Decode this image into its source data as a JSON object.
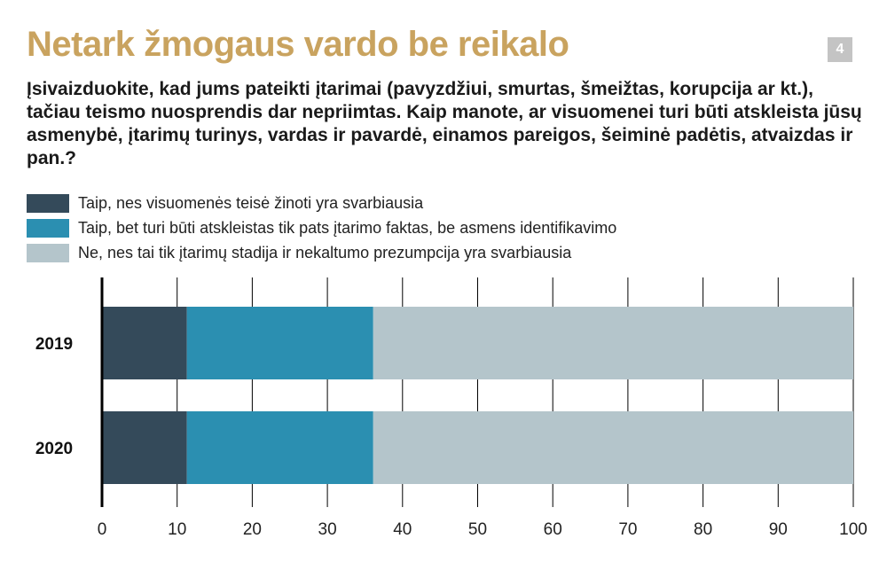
{
  "page_number": "4",
  "chart_data": {
    "type": "bar",
    "orientation": "horizontal",
    "stacked": true,
    "title": "Netark žmogaus vardo be reikalo",
    "subtitle": "Įsivaizduokite, kad jums pateikti įtarimai (pavyzdžiui, smurtas, šmeižtas, korupcija ar kt.), tačiau teismo nuosprendis dar nepriimtas. Kaip manote, ar visuomenei turi būti atskleista jūsų asmenybė, įtarimų turinys, vardas ir pavardė, einamos pareigos, šeiminė padėtis, atvaizdas ir pan.?",
    "categories": [
      "2019",
      "2020"
    ],
    "series": [
      {
        "name": "Taip, nes visuomenės teisė žinoti yra svarbiausia",
        "color": "#344a5a",
        "values": [
          11.3,
          11.3
        ]
      },
      {
        "name": "Taip, bet turi būti atskleistas tik pats įtarimo faktas, be asmens identifikavimo",
        "color": "#2b8fb1",
        "values": [
          24.8,
          24.8
        ]
      },
      {
        "name": "Ne, nes tai tik įtarimų stadija ir nekaltumo prezumpcija yra svarbiausia",
        "color": "#b4c5cb",
        "values": [
          63.9,
          63.9
        ]
      }
    ],
    "xlim": [
      0,
      100
    ],
    "xticks": [
      "0",
      "10",
      "20",
      "30",
      "40",
      "50",
      "60",
      "70",
      "80",
      "90",
      "100"
    ],
    "grid": true,
    "legend": "top-left"
  }
}
